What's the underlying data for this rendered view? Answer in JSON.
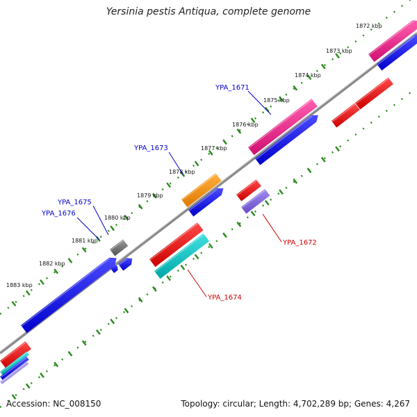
{
  "title": "Yersinia pestis Antiqua, complete genome",
  "footer": {
    "accession": "Accession: NC_008150",
    "stats": "Topology: circular; Length: 4,702,289 bp; Genes: 4,267"
  },
  "ticks": [
    "1872 kbp",
    "1873 kbp",
    "1874 kbp",
    "1875 kbp",
    "1876 kbp",
    "1877 kbp",
    "1878 kbp",
    "1879 kbp",
    "1880 kbp",
    "1881 kbp",
    "1882 kbp",
    "1883 kbp"
  ],
  "gene_labels": [
    {
      "text": "YPA_1671",
      "color": "#0000cc"
    },
    {
      "text": "YPA_1673",
      "color": "#0000cc"
    },
    {
      "text": "YPA_1675",
      "color": "#0000cc"
    },
    {
      "text": "YPA_1676",
      "color": "#0000cc"
    },
    {
      "text": "YPA_1672",
      "color": "#cc0000"
    },
    {
      "text": "YPA_1674",
      "color": "#cc0000"
    }
  ],
  "colors": {
    "backbone": "#8a8a8a",
    "tick_dots": "#2e8b22",
    "cds_blue": "#0000ee",
    "cds_pink": "#e8117f",
    "cds_red": "#ee0000",
    "cds_orange": "#ff8c00",
    "cds_cyan": "#00bdbd",
    "cds_purple": "#7f5fd6",
    "cds_gray": "#666666"
  }
}
